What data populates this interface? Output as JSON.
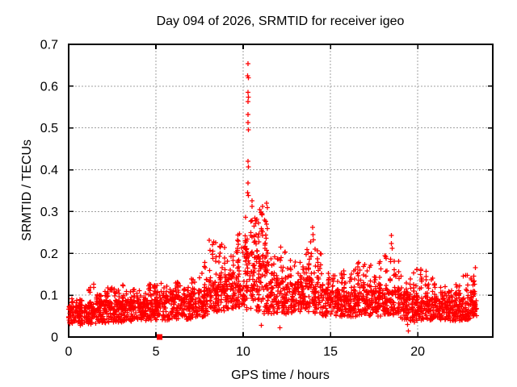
{
  "window": {
    "background": "#ffffff"
  },
  "chart_data": {
    "type": "scatter",
    "title": "Day 094 of 2026, SRMTID for receiver igeo",
    "xlabel": "GPS time / hours",
    "ylabel": "SRMTID / TECUs",
    "xlim": [
      0,
      24.3
    ],
    "ylim": [
      0,
      0.7
    ],
    "xticks": [
      0,
      5,
      10,
      15,
      20
    ],
    "xtick_labels": [
      "0",
      "5",
      "10",
      "15",
      "20"
    ],
    "yticks": [
      0,
      0.1,
      0.2,
      0.3,
      0.4,
      0.5,
      0.6,
      0.7
    ],
    "ytick_labels": [
      "0",
      "0.1",
      "0.2",
      "0.3",
      "0.4",
      "0.5",
      "0.6",
      "0.7"
    ],
    "grid": true,
    "grid_style": "dashed",
    "legend": "none",
    "marker": "plus",
    "marker_color": "#ff0000",
    "grid_color": "#a0a0a0",
    "axis_color": "#000000",
    "data_x_range": [
      0.0,
      23.4
    ],
    "peak_point": {
      "x": 10.28,
      "y": 0.654
    },
    "clipped_square_point": {
      "x": 5.21,
      "y": 0.0
    },
    "outlier_points": [
      [
        10.28,
        0.654
      ],
      [
        10.26,
        0.625
      ],
      [
        10.3,
        0.62
      ],
      [
        10.27,
        0.585
      ],
      [
        10.29,
        0.574
      ],
      [
        10.28,
        0.563
      ],
      [
        10.28,
        0.532
      ],
      [
        10.27,
        0.513
      ],
      [
        10.29,
        0.496
      ],
      [
        10.28,
        0.42
      ],
      [
        10.3,
        0.407
      ],
      [
        10.27,
        0.368
      ],
      [
        10.26,
        0.345
      ],
      [
        10.31,
        0.338
      ],
      [
        10.72,
        0.272
      ],
      [
        10.78,
        0.282
      ],
      [
        10.95,
        0.305
      ],
      [
        11.02,
        0.298
      ],
      [
        11.08,
        0.292
      ],
      [
        11.12,
        0.312
      ],
      [
        11.34,
        0.32
      ],
      [
        13.97,
        0.262
      ],
      [
        13.99,
        0.245
      ],
      [
        14.02,
        0.232
      ],
      [
        13.86,
        0.228
      ],
      [
        18.48,
        0.243
      ],
      [
        18.5,
        0.224
      ],
      [
        18.53,
        0.212
      ],
      [
        12.15,
        0.215
      ],
      [
        9.8,
        0.247
      ],
      [
        19.42,
        0.03
      ],
      [
        19.47,
        0.014
      ],
      [
        11.05,
        0.028
      ],
      [
        12.1,
        0.022
      ]
    ],
    "band_envelope": {
      "description": "Dense band of ~2600 red plus markers; each bin: [x_start_hours, x_end_hours, approx_count, y_min, y_typical_top, y_max] in TECUs",
      "bins": [
        [
          0.0,
          0.5,
          60,
          0.03,
          0.072,
          0.092
        ],
        [
          0.5,
          1.0,
          60,
          0.028,
          0.068,
          0.09
        ],
        [
          1.0,
          1.5,
          60,
          0.03,
          0.075,
          0.13
        ],
        [
          1.5,
          2.0,
          60,
          0.032,
          0.08,
          0.112
        ],
        [
          2.0,
          2.5,
          60,
          0.034,
          0.085,
          0.122
        ],
        [
          2.5,
          3.0,
          60,
          0.035,
          0.085,
          0.118
        ],
        [
          3.0,
          3.5,
          60,
          0.035,
          0.082,
          0.125
        ],
        [
          3.5,
          4.0,
          60,
          0.036,
          0.085,
          0.12
        ],
        [
          4.0,
          4.5,
          60,
          0.038,
          0.088,
          0.112
        ],
        [
          4.5,
          5.0,
          60,
          0.04,
          0.095,
          0.135
        ],
        [
          5.0,
          5.5,
          58,
          0.04,
          0.092,
          0.13
        ],
        [
          5.5,
          6.0,
          58,
          0.04,
          0.09,
          0.122
        ],
        [
          6.0,
          6.5,
          58,
          0.042,
          0.095,
          0.132
        ],
        [
          6.5,
          7.0,
          58,
          0.042,
          0.095,
          0.125
        ],
        [
          7.0,
          7.5,
          58,
          0.045,
          0.105,
          0.17
        ],
        [
          7.5,
          8.0,
          58,
          0.048,
          0.11,
          0.178
        ],
        [
          8.0,
          8.5,
          58,
          0.055,
          0.13,
          0.232
        ],
        [
          8.5,
          9.0,
          58,
          0.06,
          0.14,
          0.228
        ],
        [
          9.0,
          9.5,
          58,
          0.065,
          0.148,
          0.195
        ],
        [
          9.5,
          10.0,
          58,
          0.07,
          0.16,
          0.248
        ],
        [
          10.0,
          10.5,
          75,
          0.065,
          0.2,
          0.33
        ],
        [
          10.5,
          11.0,
          75,
          0.06,
          0.19,
          0.298
        ],
        [
          11.0,
          11.5,
          75,
          0.055,
          0.18,
          0.31
        ],
        [
          11.5,
          12.0,
          58,
          0.055,
          0.14,
          0.205
        ],
        [
          12.0,
          12.5,
          58,
          0.05,
          0.13,
          0.222
        ],
        [
          12.5,
          13.0,
          58,
          0.055,
          0.125,
          0.19
        ],
        [
          13.0,
          13.5,
          58,
          0.058,
          0.13,
          0.205
        ],
        [
          13.5,
          14.0,
          58,
          0.06,
          0.135,
          0.212
        ],
        [
          14.0,
          14.5,
          58,
          0.055,
          0.12,
          0.215
        ],
        [
          14.5,
          15.0,
          58,
          0.05,
          0.11,
          0.16
        ],
        [
          15.0,
          15.5,
          58,
          0.05,
          0.105,
          0.152
        ],
        [
          15.5,
          16.0,
          58,
          0.048,
          0.105,
          0.165
        ],
        [
          16.0,
          16.5,
          58,
          0.048,
          0.105,
          0.162
        ],
        [
          16.5,
          17.0,
          58,
          0.048,
          0.11,
          0.18
        ],
        [
          17.0,
          17.5,
          58,
          0.05,
          0.11,
          0.175
        ],
        [
          17.5,
          18.0,
          58,
          0.05,
          0.115,
          0.192
        ],
        [
          18.0,
          18.5,
          58,
          0.052,
          0.115,
          0.205
        ],
        [
          18.5,
          19.0,
          58,
          0.05,
          0.11,
          0.19
        ],
        [
          19.0,
          19.5,
          58,
          0.04,
          0.1,
          0.15
        ],
        [
          19.5,
          20.0,
          58,
          0.032,
          0.095,
          0.165
        ],
        [
          20.0,
          20.5,
          58,
          0.04,
          0.095,
          0.172
        ],
        [
          20.5,
          21.0,
          58,
          0.04,
          0.09,
          0.142
        ],
        [
          21.0,
          21.5,
          58,
          0.04,
          0.09,
          0.132
        ],
        [
          21.5,
          22.0,
          58,
          0.038,
          0.085,
          0.122
        ],
        [
          22.0,
          22.5,
          58,
          0.038,
          0.085,
          0.132
        ],
        [
          22.5,
          23.0,
          55,
          0.04,
          0.09,
          0.152
        ],
        [
          23.0,
          23.4,
          50,
          0.045,
          0.095,
          0.175
        ]
      ]
    }
  }
}
